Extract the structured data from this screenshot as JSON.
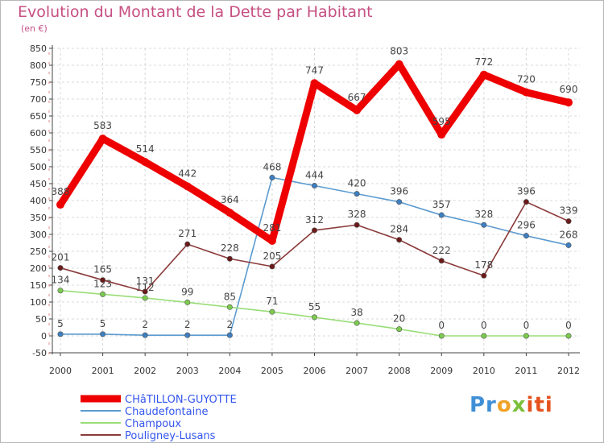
{
  "title": "Evolution du Montant de la Dette par Habitant",
  "unit": "(en €)",
  "logo": {
    "p1": "Pr",
    "p2": "o",
    "p3": "x",
    "p4": "iti"
  },
  "chart_data": {
    "type": "line",
    "title": "Evolution du Montant de la Dette par Habitant",
    "ylabel": "(en €)",
    "xlabel": "",
    "x": [
      "2000",
      "2001",
      "2002",
      "2003",
      "2004",
      "2005",
      "2006",
      "2007",
      "2008",
      "2009",
      "2010",
      "2011",
      "2012"
    ],
    "ylim": [
      -50,
      850
    ],
    "yticks": [
      -50,
      0,
      50,
      100,
      150,
      200,
      250,
      300,
      350,
      400,
      450,
      500,
      550,
      600,
      650,
      700,
      750,
      800,
      850
    ],
    "grid": true,
    "legend": "bottom-left",
    "series": [
      {
        "name": "CHâTILLON-GUYOTTE",
        "color": "#ee0000",
        "emphasis": true,
        "values": [
          388,
          583,
          514,
          442,
          364,
          281,
          747,
          667,
          803,
          595,
          772,
          720,
          690
        ]
      },
      {
        "name": "Chaudefontaine",
        "color": "#5b9bd0",
        "marker": "#3d7fc1",
        "values": [
          5,
          5,
          2,
          2,
          2,
          468,
          444,
          420,
          396,
          357,
          328,
          296,
          268
        ]
      },
      {
        "name": "Champoux",
        "color": "#99dd77",
        "marker": "#7ccb4f",
        "values": [
          134,
          123,
          112,
          99,
          85,
          71,
          55,
          38,
          20,
          0,
          0,
          0,
          0
        ]
      },
      {
        "name": "Pouligney-Lusans",
        "color": "#8b3a3a",
        "marker": "#6b1a1a",
        "values": [
          201,
          165,
          131,
          271,
          228,
          205,
          312,
          328,
          284,
          222,
          178,
          396,
          339
        ]
      }
    ]
  }
}
